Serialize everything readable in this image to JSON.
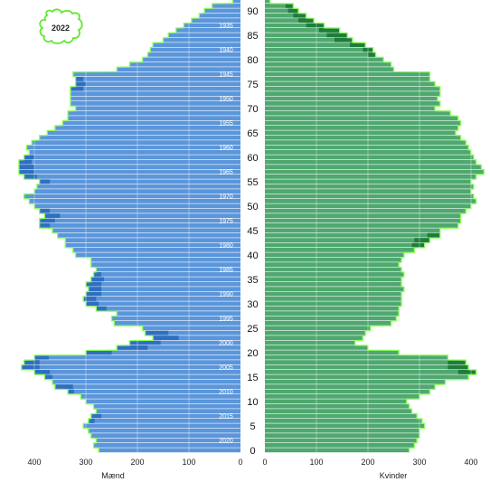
{
  "badge_year": "2022",
  "colors": {
    "men_fill": "#5b96db",
    "men_excess": "#2f6fc0",
    "women_fill": "#4fa86f",
    "women_excess": "#1f7d3a",
    "outline": "#8cff5c",
    "badge_outline": "#5fe82f"
  },
  "chart_data": {
    "type": "bar",
    "orientation": "horizontal-population-pyramid",
    "series": [
      {
        "name": "Mænd",
        "side": "left"
      },
      {
        "name": "Kvinder",
        "side": "right"
      }
    ],
    "x_ticks_left": [
      400,
      300,
      200,
      100,
      0
    ],
    "x_ticks_right": [
      0,
      100,
      200,
      300,
      400
    ],
    "x_range": [
      0,
      400
    ],
    "age_ticks": [
      0,
      5,
      10,
      15,
      20,
      25,
      30,
      35,
      40,
      45,
      50,
      55,
      60,
      65,
      70,
      75,
      80,
      85,
      90
    ],
    "birth_year_labels": [
      {
        "year": "2020",
        "age": 2
      },
      {
        "year": "2015",
        "age": 7
      },
      {
        "year": "2010",
        "age": 12
      },
      {
        "year": "2005",
        "age": 17
      },
      {
        "year": "2000",
        "age": 22
      },
      {
        "year": "1995",
        "age": 27
      },
      {
        "year": "1990",
        "age": 32
      },
      {
        "year": "1985",
        "age": 37
      },
      {
        "year": "1980",
        "age": 42
      },
      {
        "year": "1975",
        "age": 47
      },
      {
        "year": "1970",
        "age": 52
      },
      {
        "year": "1965",
        "age": 57
      },
      {
        "year": "1960",
        "age": 62
      },
      {
        "year": "1955",
        "age": 67
      },
      {
        "year": "1950",
        "age": 72
      },
      {
        "year": "1945",
        "age": 77
      },
      {
        "year": "1940",
        "age": 82
      },
      {
        "year": "1935",
        "age": 87
      }
    ],
    "ages": [
      0,
      1,
      2,
      3,
      4,
      5,
      6,
      7,
      8,
      9,
      10,
      11,
      12,
      13,
      14,
      15,
      16,
      17,
      18,
      19,
      20,
      21,
      22,
      23,
      24,
      25,
      26,
      27,
      28,
      29,
      30,
      31,
      32,
      33,
      34,
      35,
      36,
      37,
      38,
      39,
      40,
      41,
      42,
      43,
      44,
      45,
      46,
      47,
      48,
      49,
      50,
      51,
      52,
      53,
      54,
      55,
      56,
      57,
      58,
      59,
      60,
      61,
      62,
      63,
      64,
      65,
      66,
      67,
      68,
      69,
      70,
      71,
      72,
      73,
      74,
      75,
      76,
      77,
      78,
      79,
      80,
      81,
      82,
      83,
      84,
      85,
      86,
      87,
      88,
      89,
      90,
      91,
      92
    ],
    "men": [
      275,
      285,
      280,
      290,
      295,
      305,
      295,
      290,
      280,
      285,
      300,
      310,
      335,
      360,
      365,
      380,
      400,
      425,
      420,
      400,
      300,
      240,
      215,
      170,
      185,
      190,
      245,
      250,
      240,
      280,
      300,
      305,
      300,
      295,
      300,
      290,
      285,
      280,
      290,
      290,
      320,
      325,
      340,
      340,
      355,
      365,
      390,
      390,
      380,
      390,
      400,
      410,
      420,
      400,
      395,
      390,
      420,
      430,
      430,
      430,
      420,
      410,
      415,
      405,
      390,
      375,
      360,
      345,
      335,
      335,
      320,
      330,
      330,
      330,
      330,
      320,
      320,
      325,
      240,
      215,
      190,
      180,
      175,
      170,
      150,
      140,
      125,
      110,
      95,
      80,
      70,
      55,
      15
    ],
    "women": [
      280,
      290,
      295,
      300,
      300,
      310,
      305,
      295,
      285,
      280,
      275,
      300,
      320,
      330,
      350,
      395,
      410,
      395,
      390,
      355,
      260,
      200,
      175,
      190,
      195,
      205,
      245,
      255,
      260,
      260,
      265,
      265,
      265,
      270,
      265,
      265,
      270,
      265,
      260,
      265,
      270,
      290,
      310,
      320,
      340,
      340,
      375,
      380,
      380,
      390,
      400,
      410,
      405,
      400,
      405,
      400,
      410,
      425,
      420,
      410,
      405,
      400,
      395,
      390,
      380,
      370,
      375,
      380,
      375,
      360,
      330,
      340,
      335,
      340,
      340,
      330,
      320,
      320,
      250,
      245,
      230,
      215,
      210,
      195,
      170,
      160,
      145,
      115,
      95,
      80,
      65,
      55,
      10
    ],
    "excess_men": [
      0,
      0,
      0,
      0,
      0,
      0,
      12,
      20,
      0,
      0,
      0,
      0,
      12,
      35,
      0,
      15,
      30,
      35,
      30,
      28,
      50,
      60,
      60,
      50,
      45,
      0,
      0,
      0,
      0,
      20,
      25,
      25,
      30,
      25,
      30,
      25,
      15,
      0,
      0,
      0,
      0,
      0,
      0,
      0,
      0,
      0,
      20,
      30,
      30,
      20,
      0,
      0,
      0,
      0,
      0,
      20,
      25,
      30,
      30,
      25,
      20,
      0,
      0,
      0,
      0,
      0,
      0,
      0,
      0,
      0,
      0,
      0,
      0,
      0,
      25,
      20,
      15,
      0,
      0,
      0,
      0,
      0,
      0,
      0,
      0,
      0,
      0,
      0,
      0,
      0,
      0,
      0,
      0
    ],
    "excess_women": [
      0,
      0,
      0,
      0,
      0,
      0,
      0,
      0,
      0,
      0,
      0,
      0,
      0,
      0,
      0,
      0,
      35,
      40,
      35,
      0,
      0,
      0,
      0,
      0,
      0,
      0,
      0,
      0,
      0,
      0,
      0,
      0,
      0,
      0,
      0,
      0,
      0,
      0,
      0,
      0,
      0,
      0,
      25,
      30,
      25,
      0,
      0,
      0,
      0,
      0,
      0,
      0,
      0,
      0,
      0,
      0,
      0,
      0,
      0,
      0,
      0,
      0,
      0,
      0,
      0,
      0,
      0,
      0,
      0,
      0,
      0,
      0,
      0,
      0,
      0,
      0,
      0,
      0,
      0,
      0,
      0,
      15,
      20,
      30,
      35,
      40,
      40,
      35,
      30,
      25,
      20,
      15,
      0
    ]
  },
  "x_labels": {
    "left": "Mænd",
    "right": "Kvinder"
  }
}
